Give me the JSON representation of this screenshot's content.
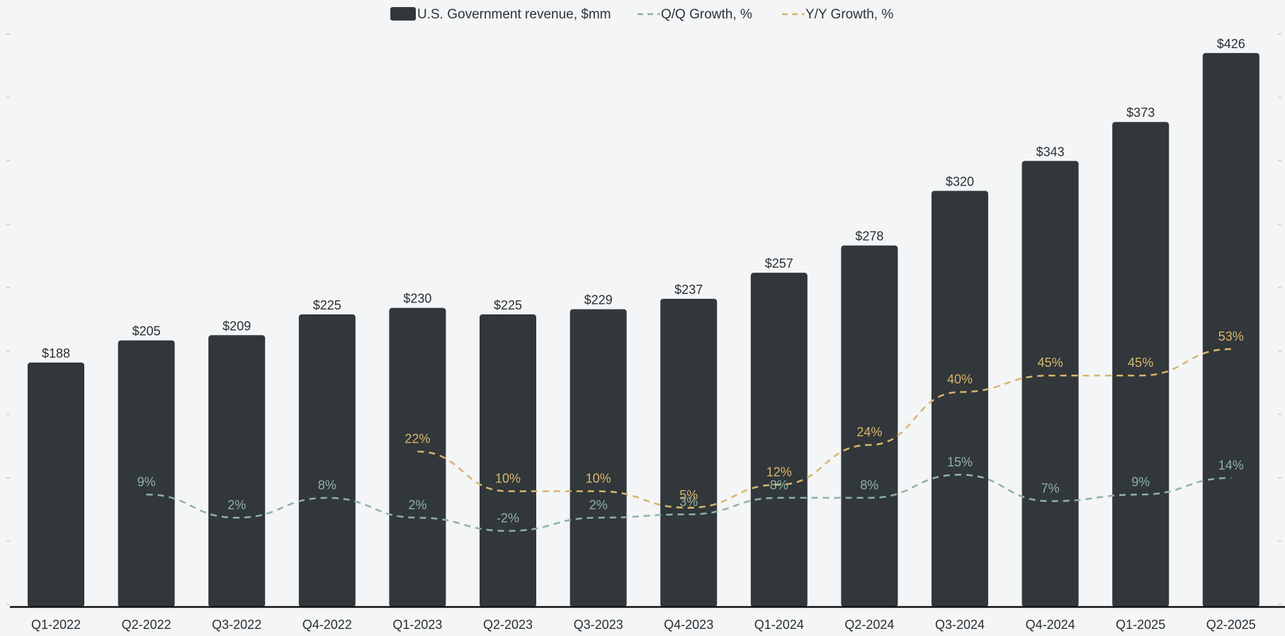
{
  "colors": {
    "background": "#f3f5f7",
    "bar": "#31373a",
    "qq_line": "#8fb2a7",
    "yy_line": "#d9b56d",
    "axis": "#111111",
    "text": "#2b2f31"
  },
  "legend": {
    "bars": "U.S. Government revenue, $mm",
    "qq": "Q/Q Growth, %",
    "yy": "Y/Y Growth, %"
  },
  "chart_data": {
    "type": "bar",
    "title": "",
    "xlabel": "",
    "ylabel": "",
    "legend_position": "top-center",
    "grid": false,
    "ylim": [
      0,
      445
    ],
    "growth_ylim": [
      -25,
      150
    ],
    "categories": [
      "Q1-2022",
      "Q2-2022",
      "Q3-2022",
      "Q4-2022",
      "Q1-2023",
      "Q2-2023",
      "Q3-2023",
      "Q4-2023",
      "Q1-2024",
      "Q2-2024",
      "Q3-2024",
      "Q4-2024",
      "Q1-2025",
      "Q2-2025"
    ],
    "series": [
      {
        "name": "U.S. Government revenue, $mm",
        "kind": "bar",
        "values": [
          188,
          205,
          209,
          225,
          230,
          225,
          229,
          237,
          257,
          278,
          320,
          343,
          373,
          426
        ],
        "labels": [
          "$188",
          "$205",
          "$209",
          "$225",
          "$230",
          "$225",
          "$229",
          "$237",
          "$257",
          "$278",
          "$320",
          "$343",
          "$373",
          "$426"
        ]
      },
      {
        "name": "Q/Q Growth, %",
        "kind": "line",
        "style": "dashed",
        "values": [
          null,
          9,
          2,
          8,
          2,
          -2,
          2,
          3,
          8,
          8,
          15,
          7,
          9,
          14
        ],
        "labels": [
          null,
          "9%",
          "2%",
          "8%",
          "2%",
          "-2%",
          "2%",
          "3%",
          "8%",
          "8%",
          "15%",
          "7%",
          "9%",
          "14%"
        ]
      },
      {
        "name": "Y/Y Growth, %",
        "kind": "line",
        "style": "dashed",
        "values": [
          null,
          null,
          null,
          null,
          22,
          10,
          10,
          5,
          12,
          24,
          40,
          45,
          45,
          53
        ],
        "labels": [
          null,
          null,
          null,
          null,
          "22%",
          "10%",
          "10%",
          "5%",
          "12%",
          "24%",
          "40%",
          "45%",
          "45%",
          "53%"
        ]
      }
    ]
  }
}
